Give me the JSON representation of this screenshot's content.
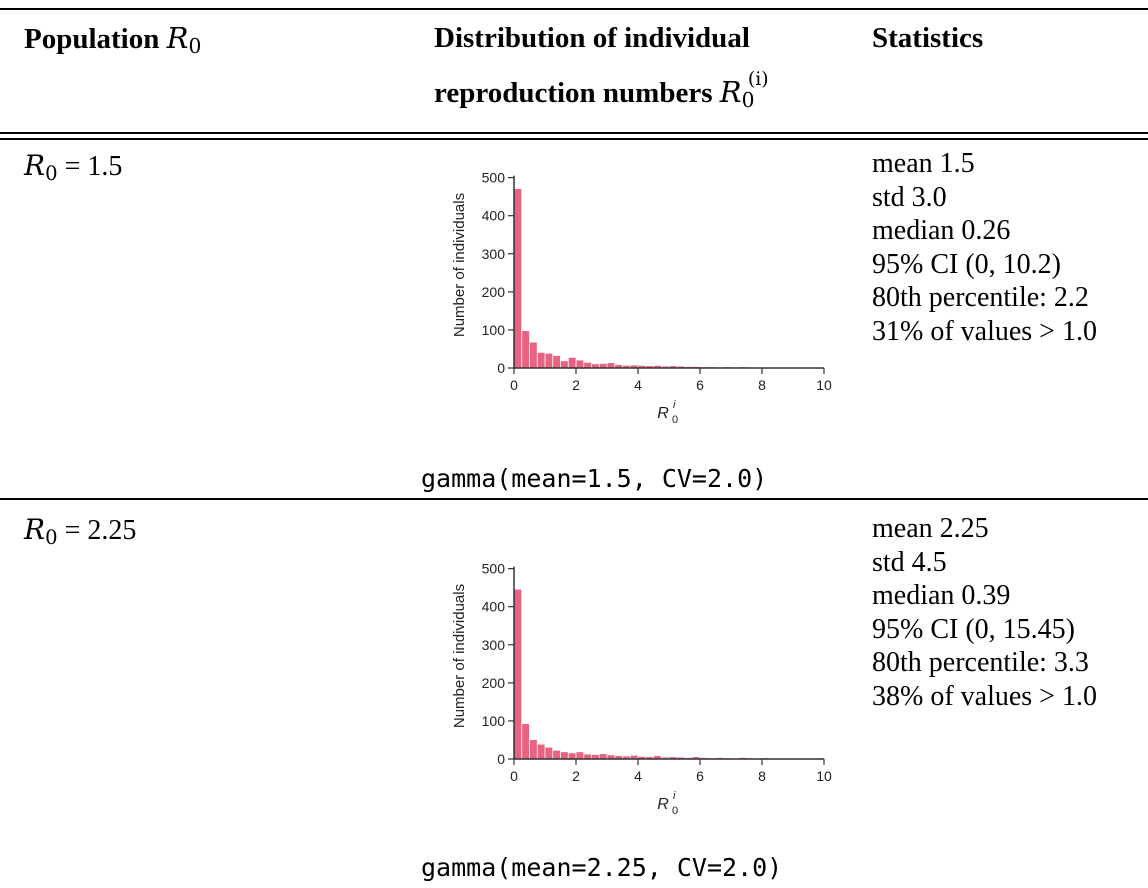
{
  "table": {
    "headers": {
      "population_label": "Population",
      "population_symbol": "R",
      "population_sub": "0",
      "distribution_line1": "Distribution of individual",
      "distribution_line2": "reproduction numbers",
      "distribution_symbol": "R",
      "distribution_sub": "0",
      "distribution_sup": "(i)",
      "statistics": "Statistics"
    },
    "rows": [
      {
        "r0_symbol": "R",
        "r0_sub": "0",
        "r0_value": "= 1.5",
        "distribution": "gamma(mean=1.5, CV=2.0)",
        "stats": [
          "mean 1.5",
          "std 3.0",
          "median 0.26",
          "95% CI (0, 10.2)",
          "80th percentile: 2.2",
          "31% of values > 1.0"
        ]
      },
      {
        "r0_symbol": "R",
        "r0_sub": "0",
        "r0_value": "= 2.25",
        "distribution": "gamma(mean=2.25, CV=2.0)",
        "stats": [
          "mean 2.25",
          "std 4.5",
          "median 0.39",
          "95% CI (0, 15.45)",
          "80th percentile: 3.3",
          "38% of values > 1.0"
        ]
      }
    ]
  },
  "chart_data": [
    {
      "type": "bar",
      "xlabel": "R",
      "xlabel_sub": "0",
      "xlabel_sup": "i",
      "ylabel": "Number of individuals",
      "xlim": [
        0,
        10
      ],
      "ylim": [
        0,
        520
      ],
      "xticks": [
        0,
        2,
        4,
        6,
        8,
        10
      ],
      "yticks": [
        0,
        100,
        200,
        300,
        400,
        500
      ],
      "bin_width": 0.25,
      "bar_color": "#e8637f",
      "values": [
        470,
        97,
        67,
        40,
        38,
        32,
        18,
        27,
        20,
        14,
        10,
        11,
        13,
        8,
        6,
        7,
        6,
        5,
        6,
        4,
        5,
        4,
        3,
        3,
        2,
        2,
        1,
        2,
        1,
        2,
        1,
        1,
        1,
        0,
        1,
        0,
        1,
        0,
        1,
        0
      ]
    },
    {
      "type": "bar",
      "xlabel": "R",
      "xlabel_sub": "0",
      "xlabel_sup": "i",
      "ylabel": "Number of individuals",
      "xlim": [
        0,
        10
      ],
      "ylim": [
        0,
        520
      ],
      "xticks": [
        0,
        2,
        4,
        6,
        8,
        10
      ],
      "yticks": [
        0,
        100,
        200,
        300,
        400,
        500
      ],
      "bin_width": 0.25,
      "bar_color": "#e8637f",
      "values": [
        445,
        92,
        50,
        38,
        30,
        22,
        18,
        15,
        18,
        12,
        11,
        13,
        10,
        8,
        7,
        9,
        6,
        5,
        8,
        4,
        5,
        4,
        3,
        5,
        3,
        2,
        3,
        2,
        1,
        3,
        2,
        1,
        2,
        1,
        1,
        1,
        0,
        1,
        0,
        2
      ]
    }
  ]
}
